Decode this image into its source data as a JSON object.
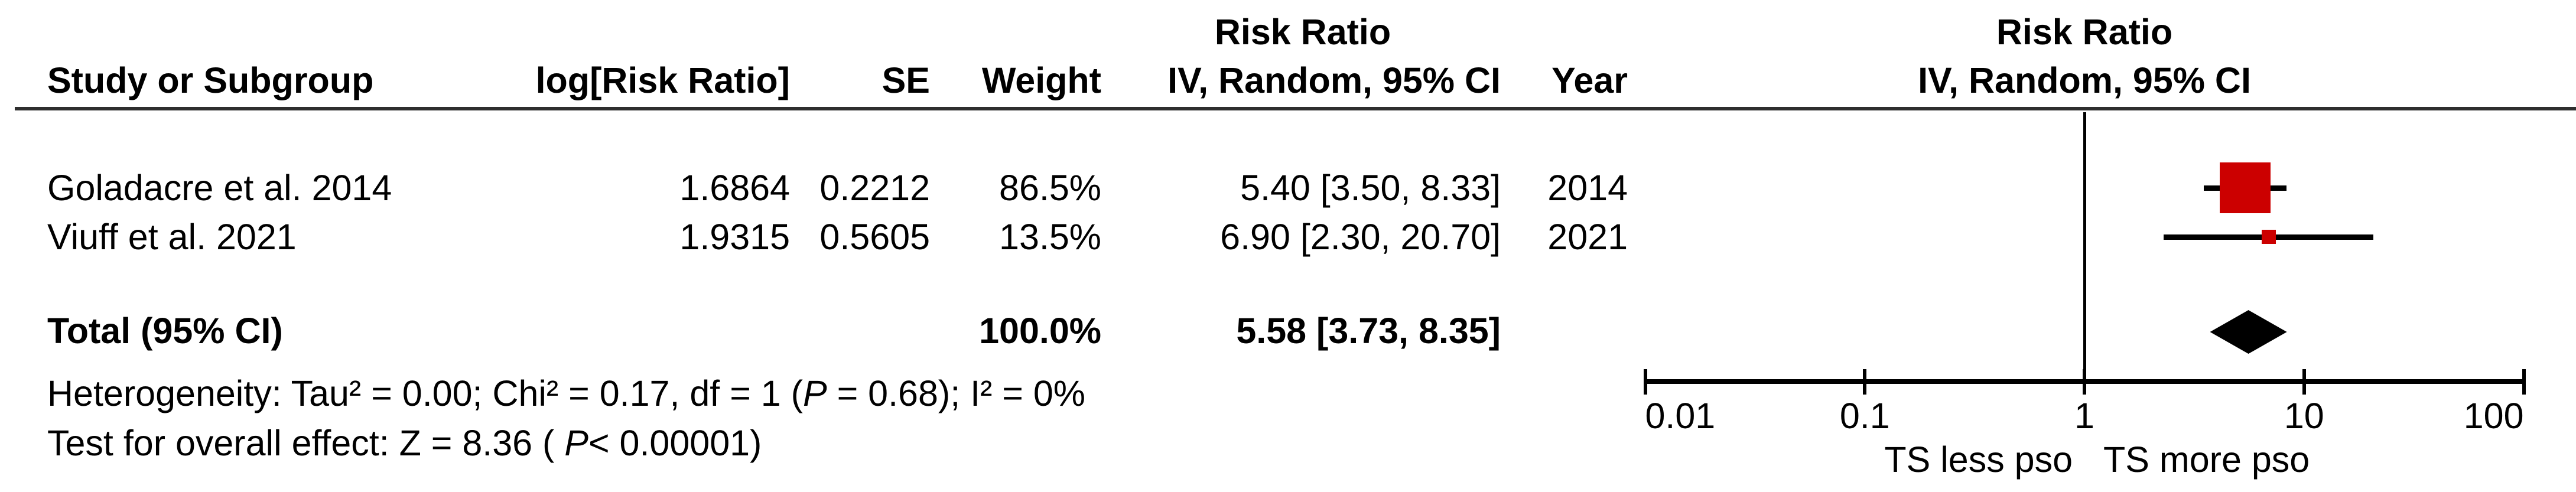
{
  "table": {
    "headers": {
      "study": "Study or Subgroup",
      "log_rr": "log[Risk Ratio]",
      "se": "SE",
      "weight": "Weight",
      "effect_group": "Risk Ratio",
      "effect": "IV, Random, 95% CI",
      "year": "Year"
    },
    "rows": [
      {
        "study": "Goladacre et al. 2014",
        "log_rr": "1.6864",
        "se": "0.2212",
        "weight": "86.5%",
        "effect": "5.40 [3.50, 8.33]",
        "year": "2014"
      },
      {
        "study": "Viuff et al. 2021",
        "log_rr": "1.9315",
        "se": "0.5605",
        "weight": "13.5%",
        "effect": "6.90 [2.30, 20.70]",
        "year": "2021"
      }
    ],
    "total": {
      "label": "Total (95% CI)",
      "weight": "100.0%",
      "effect": "5.58 [3.73, 8.35]"
    }
  },
  "footer": {
    "heterogeneity": {
      "pre": "Heterogeneity: Tau² = 0.00; Chi² = 0.17, df = 1 (",
      "p": "P",
      "post": " = 0.68); I² = 0%"
    },
    "overall_test": {
      "pre": "Test for overall effect: Z = 8.36 ( ",
      "p": "P",
      "post": "< 0.00001)"
    }
  },
  "plot": {
    "header_line1": "Risk Ratio",
    "header_line2": "IV, Random, 95% CI",
    "tick_labels": [
      "0.01",
      "0.1",
      "1",
      "10",
      "100"
    ],
    "favours_left": "TS less pso",
    "favours_right": "TS more pso",
    "square_color": "#CC0000",
    "diamond_color": "#000000"
  },
  "chart_data": {
    "type": "forest",
    "effect_measure": "Risk Ratio",
    "model": "IV, Random, 95% CI",
    "x_scale": "log10",
    "x_range": [
      0.01,
      100
    ],
    "x_ticks": [
      0.01,
      0.1,
      1,
      10,
      100
    ],
    "null_line": 1,
    "studies": [
      {
        "name": "Goladacre et al. 2014",
        "log_rr": 1.6864,
        "se": 0.2212,
        "weight_pct": 86.5,
        "rr": 5.4,
        "ci_low": 3.5,
        "ci_high": 8.33,
        "year": 2014
      },
      {
        "name": "Viuff et al. 2021",
        "log_rr": 1.9315,
        "se": 0.5605,
        "weight_pct": 13.5,
        "rr": 6.9,
        "ci_low": 2.3,
        "ci_high": 20.7,
        "year": 2021
      }
    ],
    "total": {
      "label": "Total (95% CI)",
      "weight_pct": 100.0,
      "rr": 5.58,
      "ci_low": 3.73,
      "ci_high": 8.35
    },
    "heterogeneity": {
      "tau2": 0.0,
      "chi2": 0.17,
      "df": 1,
      "p": 0.68,
      "i2_pct": 0
    },
    "overall_effect": {
      "z": 8.36,
      "p": "< 0.00001"
    },
    "axis_label_left": "TS less pso",
    "axis_label_right": "TS more pso"
  }
}
